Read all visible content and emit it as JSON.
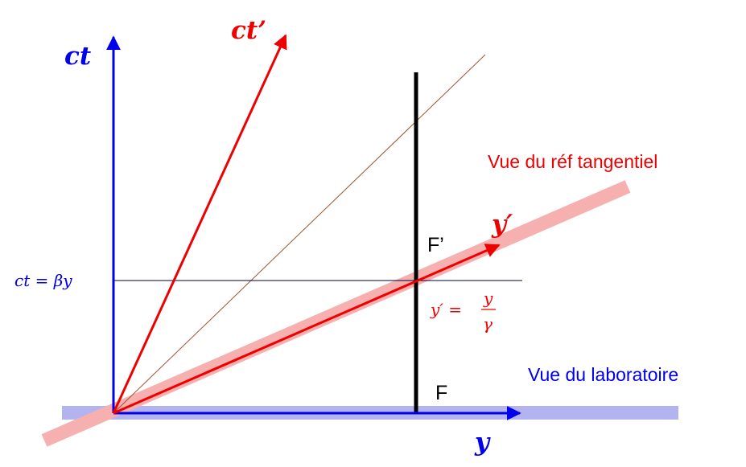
{
  "axis_labels": {
    "ct": "ct",
    "ct_prime": "ct’",
    "y": "y",
    "y_prime": "y′"
  },
  "annotations": {
    "ct_beta_y": "ct = βy",
    "y_prime_lhs": "y′ =",
    "y_prime_num": "y",
    "y_prime_den": "γ"
  },
  "points": {
    "F": "F",
    "F_prime": "F’"
  },
  "views": {
    "tangential": "Vue du réf tangentiel",
    "laboratory": "Vue du laboratoire"
  },
  "colors": {
    "lab_axes": "#0000ee",
    "moving_axes": "#ee0000",
    "lab_band": "#b3b3f0",
    "tangential_band": "#f6b0b0",
    "world_line": "#000000",
    "light_line": "#a0522d"
  }
}
